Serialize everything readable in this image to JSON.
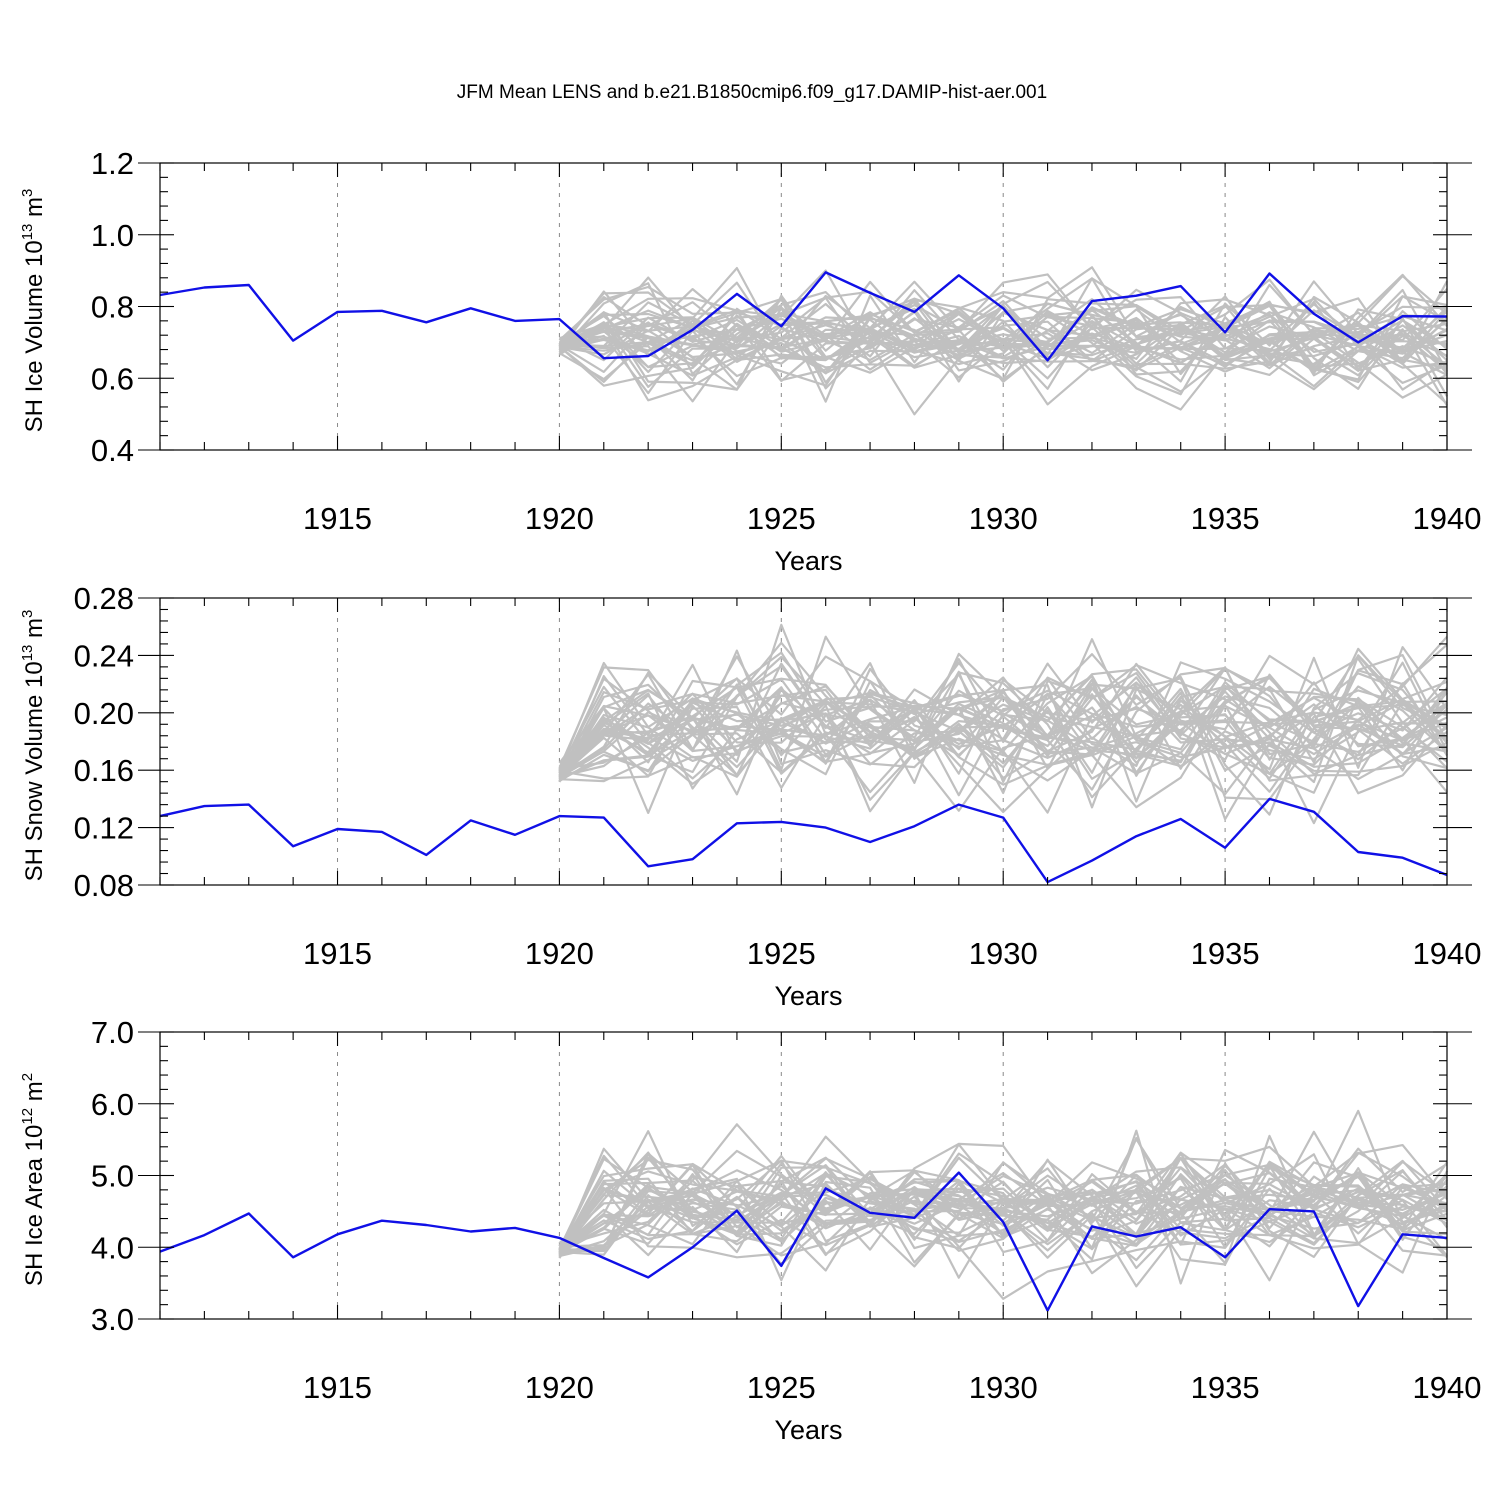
{
  "title": "JFM Mean LENS and b.e21.B1850cmip6.f09_g17.DAMIP-hist-aer.001",
  "colors": {
    "ensemble": "#c0c0c0",
    "highlight": "#1010e6",
    "grid": "#8a8a8a"
  },
  "chart_data": [
    {
      "type": "line",
      "ylabel": "SH Ice Volume 10",
      "ylabel_exp": "13",
      "ylabel_unit": " m",
      "ylabel_unit_exp": "3",
      "xlabel": "Years",
      "xlim": [
        1911,
        1940
      ],
      "ylim": [
        0.4,
        1.2
      ],
      "yticks": [
        "0.4",
        "0.6",
        "0.8",
        "1.0",
        "1.2"
      ],
      "xticks": [
        "1915",
        "1920",
        "1925",
        "1930",
        "1935",
        "1940"
      ],
      "grid_x": [
        1915,
        1920,
        1925,
        1930,
        1935
      ],
      "series": [
        {
          "years": [
            1911,
            1912,
            1913,
            1914,
            1915,
            1916,
            1917,
            1918,
            1919,
            1920,
            1921,
            1922,
            1923,
            1924,
            1925,
            1926,
            1927,
            1928,
            1929,
            1930,
            1931,
            1932,
            1933,
            1934,
            1935,
            1936,
            1937,
            1938,
            1939,
            1940
          ],
          "values": [
            0.832,
            0.853,
            0.86,
            0.705,
            0.785,
            0.788,
            0.756,
            0.795,
            0.76,
            0.765,
            0.656,
            0.662,
            0.735,
            0.835,
            0.745,
            0.895,
            0.838,
            0.785,
            0.887,
            0.795,
            0.65,
            0.815,
            0.83,
            0.857,
            0.728,
            0.892,
            0.78,
            0.7,
            0.773,
            0.772
          ]
        }
      ],
      "ensemble": {
        "members": 40,
        "start_year": 1920,
        "base": 0.72,
        "spread": 0.065,
        "start_value": 0.69
      }
    },
    {
      "type": "line",
      "ylabel": "SH Snow Volume 10",
      "ylabel_exp": "13",
      "ylabel_unit": " m",
      "ylabel_unit_exp": "3",
      "xlabel": "Years",
      "xlim": [
        1911,
        1940
      ],
      "ylim": [
        0.08,
        0.28
      ],
      "yticks": [
        "0.08",
        "0.12",
        "0.16",
        "0.20",
        "0.24",
        "0.28"
      ],
      "xticks": [
        "1915",
        "1920",
        "1925",
        "1930",
        "1935",
        "1940"
      ],
      "grid_x": [
        1915,
        1920,
        1925,
        1930,
        1935
      ],
      "series": [
        {
          "years": [
            1911,
            1912,
            1913,
            1914,
            1915,
            1916,
            1917,
            1918,
            1919,
            1920,
            1921,
            1922,
            1923,
            1924,
            1925,
            1926,
            1927,
            1928,
            1929,
            1930,
            1931,
            1932,
            1933,
            1934,
            1935,
            1936,
            1937,
            1938,
            1939,
            1940
          ],
          "values": [
            0.128,
            0.135,
            0.136,
            0.107,
            0.119,
            0.117,
            0.101,
            0.125,
            0.115,
            0.128,
            0.127,
            0.093,
            0.098,
            0.123,
            0.124,
            0.12,
            0.11,
            0.121,
            0.136,
            0.127,
            0.082,
            0.097,
            0.114,
            0.126,
            0.106,
            0.14,
            0.131,
            0.103,
            0.099,
            0.087
          ]
        }
      ],
      "ensemble": {
        "members": 40,
        "start_year": 1920,
        "base": 0.192,
        "spread": 0.022,
        "start_value": 0.157
      }
    },
    {
      "type": "line",
      "ylabel": "SH Ice Area 10",
      "ylabel_exp": "12",
      "ylabel_unit": " m",
      "ylabel_unit_exp": "2",
      "xlabel": "Years",
      "xlim": [
        1911,
        1940
      ],
      "ylim": [
        3.0,
        7.0
      ],
      "yticks": [
        "3.0",
        "4.0",
        "5.0",
        "6.0",
        "7.0"
      ],
      "xticks": [
        "1915",
        "1920",
        "1925",
        "1930",
        "1935",
        "1940"
      ],
      "grid_x": [
        1915,
        1920,
        1925,
        1930,
        1935
      ],
      "series": [
        {
          "years": [
            1911,
            1912,
            1913,
            1914,
            1915,
            1916,
            1917,
            1918,
            1919,
            1920,
            1921,
            1922,
            1923,
            1924,
            1925,
            1926,
            1927,
            1928,
            1929,
            1930,
            1931,
            1932,
            1933,
            1934,
            1935,
            1936,
            1937,
            1938,
            1939,
            1940
          ],
          "values": [
            3.94,
            4.17,
            4.47,
            3.86,
            4.18,
            4.37,
            4.31,
            4.22,
            4.27,
            4.13,
            3.85,
            3.58,
            4.0,
            4.51,
            3.74,
            4.82,
            4.48,
            4.41,
            5.04,
            4.35,
            3.12,
            4.29,
            4.15,
            4.28,
            3.86,
            4.53,
            4.5,
            3.18,
            4.18,
            4.13
          ]
        }
      ],
      "ensemble": {
        "members": 40,
        "start_year": 1920,
        "base": 4.6,
        "spread": 0.38,
        "start_value": 3.95
      }
    }
  ]
}
